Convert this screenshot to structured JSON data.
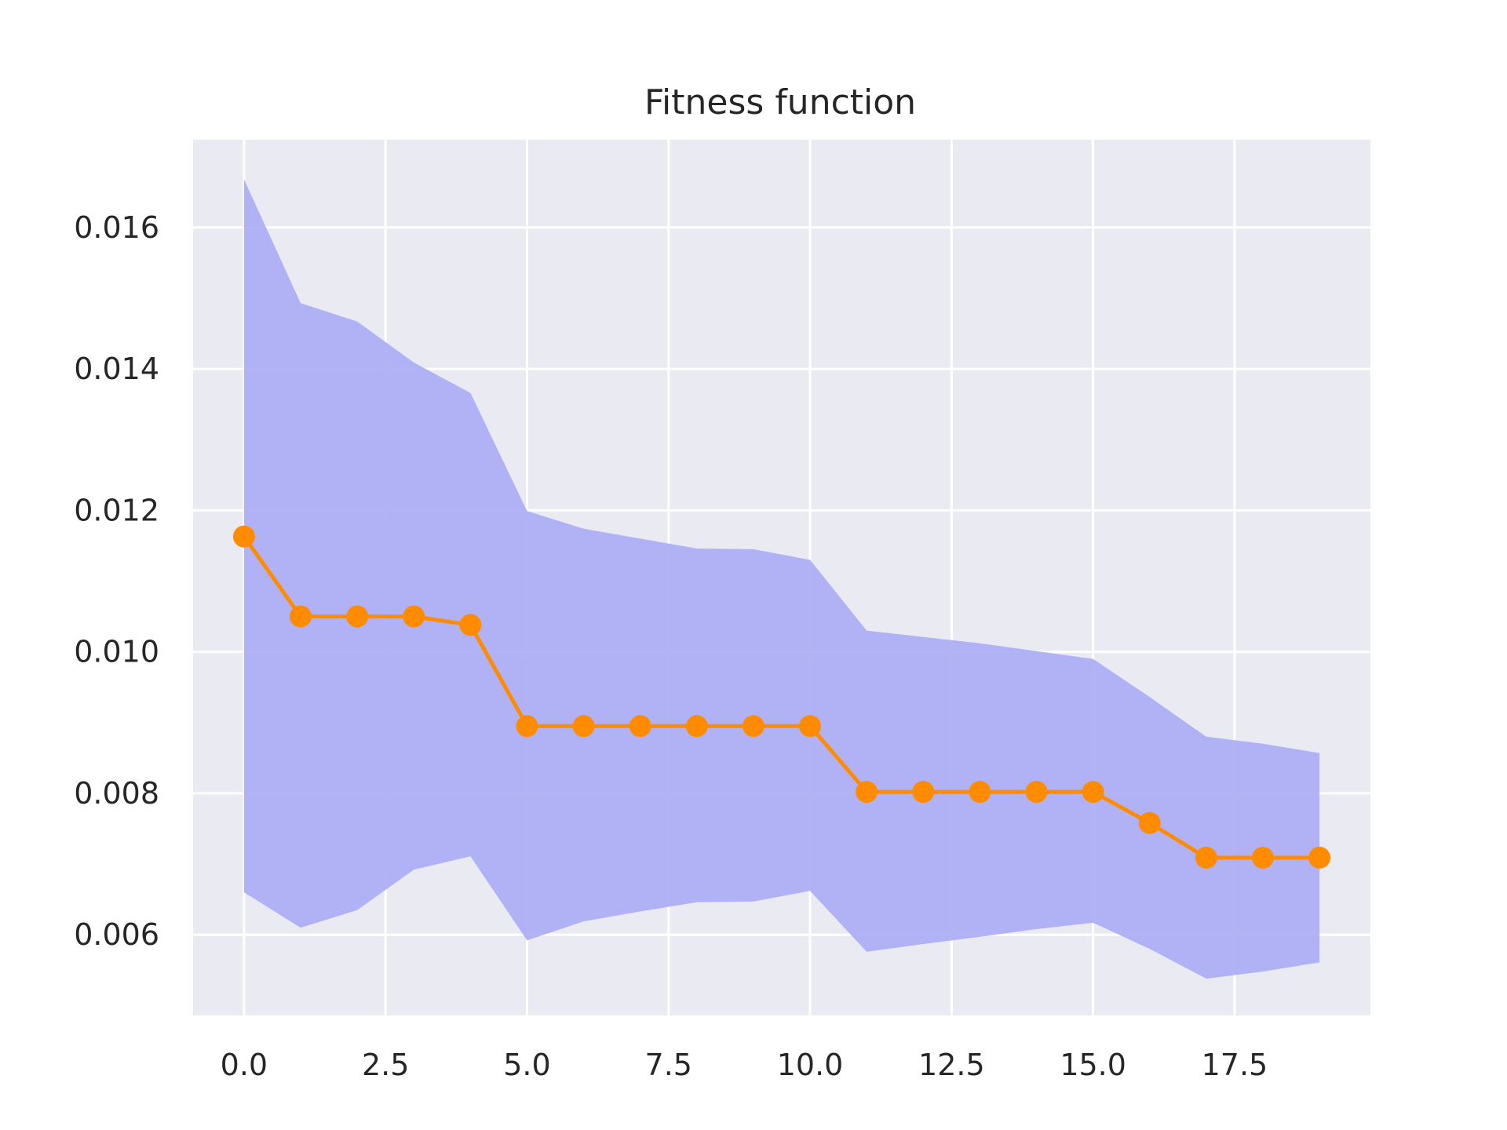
{
  "chart_data": {
    "type": "line",
    "title": "Fitness function",
    "xlabel": "",
    "ylabel": "",
    "x": [
      0,
      1,
      2,
      3,
      4,
      5,
      6,
      7,
      8,
      9,
      10,
      11,
      12,
      13,
      14,
      15,
      16,
      17,
      18,
      19
    ],
    "series": [
      {
        "values": [
          0.01163,
          0.0105,
          0.0105,
          0.0105,
          0.01038,
          0.00895,
          0.00895,
          0.00895,
          0.00895,
          0.00895,
          0.00895,
          0.00802,
          0.00802,
          0.00802,
          0.00802,
          0.00802,
          0.00758,
          0.00709,
          0.00709,
          0.00709
        ],
        "color": "#ff8c00",
        "band_upper": [
          0.01668,
          0.01493,
          0.01467,
          0.01409,
          0.01366,
          0.01199,
          0.01174,
          0.0116,
          0.01146,
          0.01145,
          0.0113,
          0.0103,
          0.01021,
          0.01012,
          0.01001,
          0.0099,
          0.00936,
          0.0088,
          0.0087,
          0.00857
        ],
        "band_lower": [
          0.0066,
          0.0061,
          0.00635,
          0.00692,
          0.00711,
          0.00592,
          0.00619,
          0.00633,
          0.00646,
          0.00647,
          0.00662,
          0.00576,
          0.00587,
          0.00597,
          0.00608,
          0.00617,
          0.0058,
          0.00538,
          0.00548,
          0.00561
        ],
        "band_color": "#aeaff4"
      }
    ],
    "xlim": [
      -0.9,
      19.9
    ],
    "ylim": [
      0.00486,
      0.01724
    ],
    "xticks": [
      "0.0",
      "2.5",
      "5.0",
      "7.5",
      "10.0",
      "12.5",
      "15.0",
      "17.5"
    ],
    "xtick_values": [
      0,
      2.5,
      5,
      7.5,
      10,
      12.5,
      15,
      17.5
    ],
    "yticks": [
      "0.006",
      "0.008",
      "0.010",
      "0.012",
      "0.014",
      "0.016"
    ],
    "ytick_values": [
      0.006,
      0.008,
      0.01,
      0.012,
      0.014,
      0.016
    ],
    "grid": true,
    "background_color": "#eaeaf2",
    "grid_color": "#ffffff"
  }
}
